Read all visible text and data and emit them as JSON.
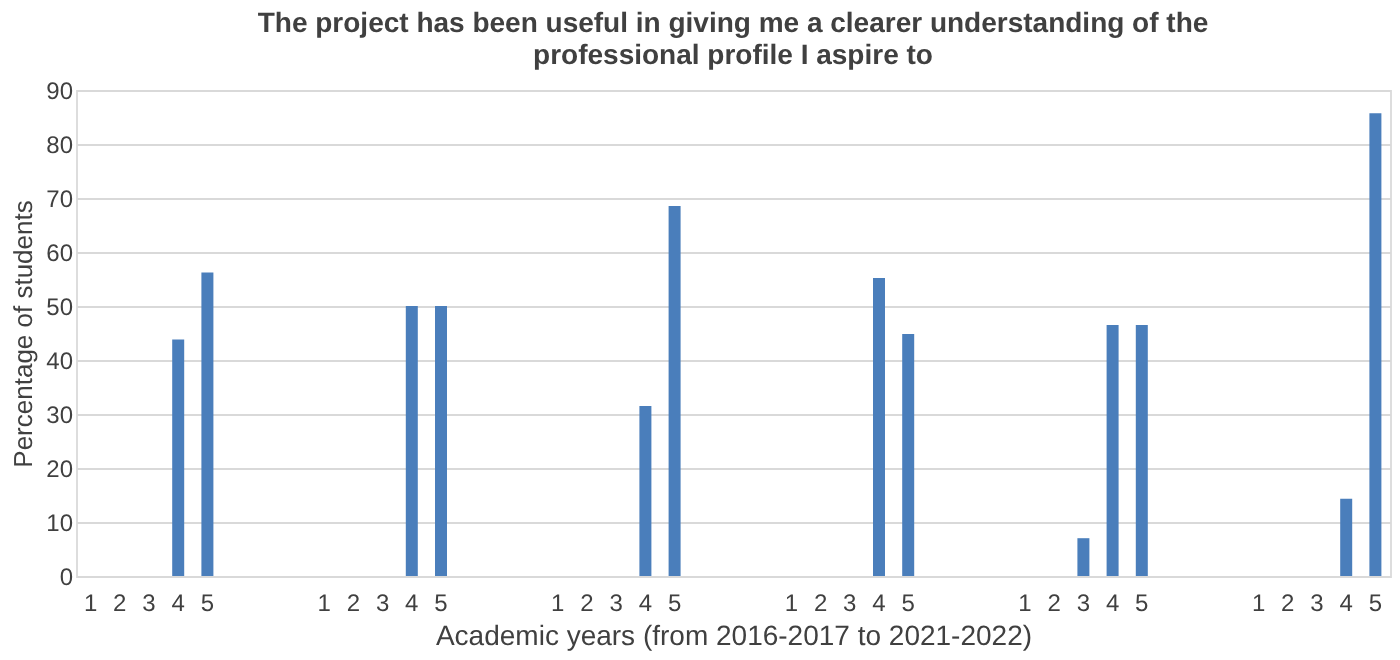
{
  "chart_data": {
    "type": "bar",
    "title": [
      "The project has been useful in giving me a clearer understanding of the",
      "professional profile I aspire to"
    ],
    "xlabel": "Academic years (from 2016-2017 to 2021-2022)",
    "ylabel": "Percentage of students",
    "categories": [
      "1",
      "2",
      "3",
      "4",
      "5",
      null,
      null,
      null,
      "1",
      "2",
      "3",
      "4",
      "5",
      null,
      null,
      null,
      "1",
      "2",
      "3",
      "4",
      "5",
      null,
      null,
      null,
      "1",
      "2",
      "3",
      "4",
      "5",
      null,
      null,
      null,
      "1",
      "2",
      "3",
      "4",
      "5",
      null,
      null,
      null,
      "1",
      "2",
      "3",
      "4",
      "5"
    ],
    "values": [
      null,
      null,
      null,
      43.8,
      56.2,
      null,
      null,
      null,
      null,
      null,
      null,
      50,
      50,
      null,
      null,
      null,
      null,
      null,
      null,
      31.5,
      68.5,
      null,
      null,
      null,
      null,
      null,
      null,
      55.2,
      44.8,
      null,
      null,
      null,
      null,
      null,
      7,
      46.5,
      46.5,
      null,
      null,
      null,
      null,
      null,
      null,
      14.3,
      85.7
    ],
    "color": "#4a7ebb",
    "ylim": [
      0,
      90
    ],
    "yticks": [
      0,
      10,
      20,
      30,
      40,
      50,
      60,
      70,
      80,
      90
    ],
    "grid": "y"
  }
}
